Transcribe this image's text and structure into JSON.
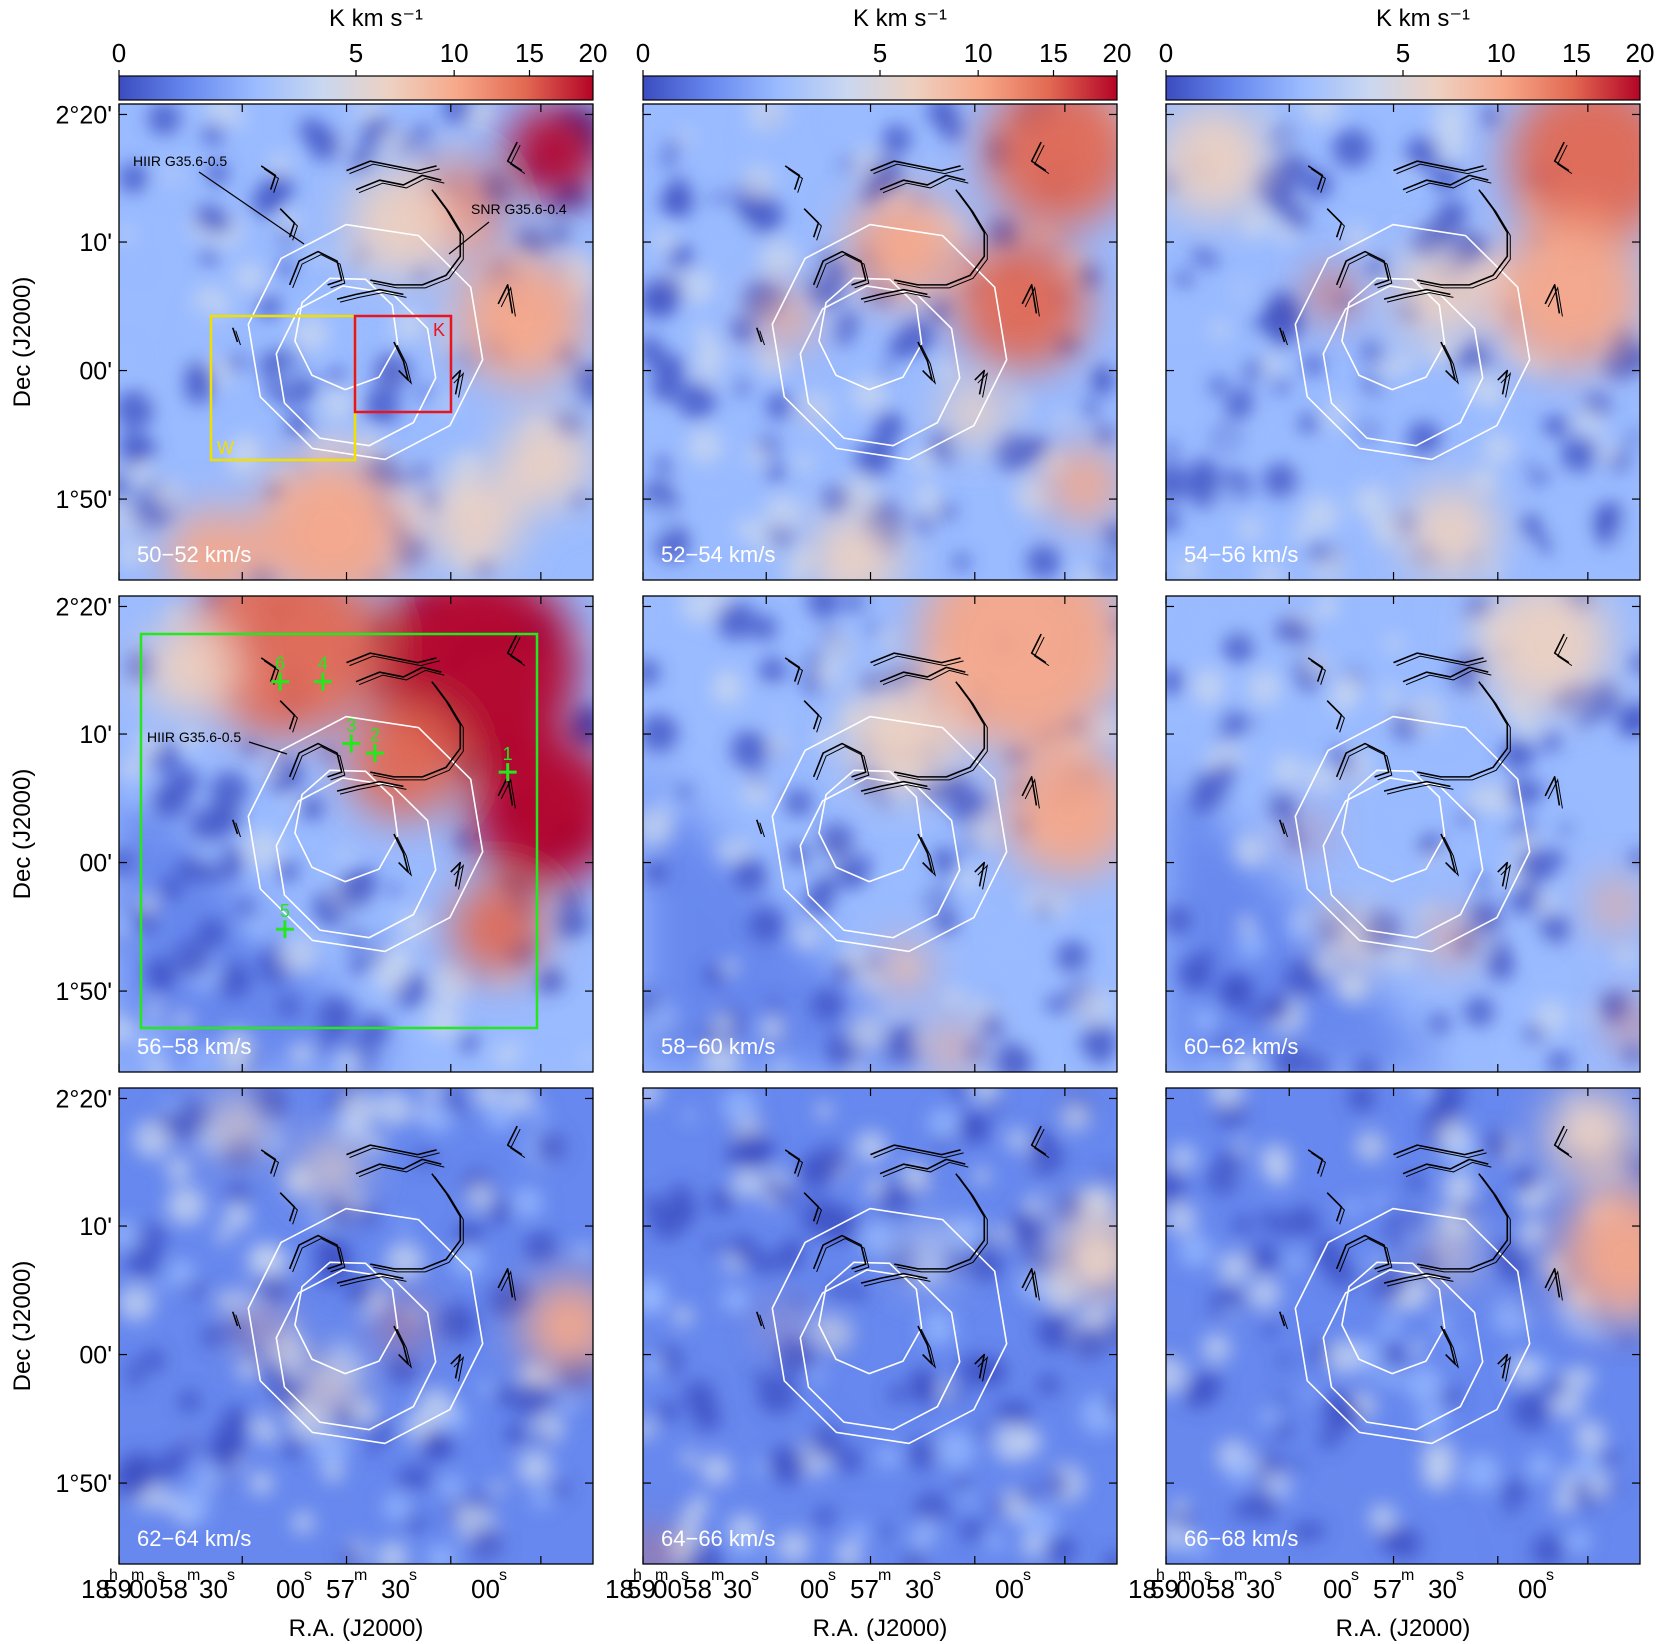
{
  "colorbar": {
    "unit_label": "K km s⁻¹",
    "ticks": [
      "0",
      "5",
      "10",
      "15",
      "20"
    ],
    "tick_values": [
      0,
      5,
      10,
      15,
      20
    ],
    "scale": "sqrt",
    "colormap": [
      "#3b4cc0",
      "#6788ee",
      "#9abbff",
      "#c9d7f0",
      "#edd1c2",
      "#f7a889",
      "#e26952",
      "#b40426"
    ]
  },
  "axes": {
    "ylabel": "Dec (J2000)",
    "xlabel": "R.A. (J2000)",
    "yticks": [
      "2°20'",
      "10'",
      "00'",
      "1°50'"
    ],
    "xticks": [
      {
        "main": "18",
        "sup": "h"
      },
      {
        "main": "59",
        "sup": "m"
      },
      {
        "main": "00",
        "sup": "s"
      },
      {
        "main": "58",
        "sup": "m"
      },
      {
        "main": "30",
        "sup": "s"
      },
      {
        "main": "00",
        "sup": "s"
      },
      {
        "main": "57",
        "sup": "m"
      },
      {
        "main": "30",
        "sup": "s"
      },
      {
        "main": "00",
        "sup": "s"
      }
    ]
  },
  "panels": [
    {
      "label": "50−52 km/s"
    },
    {
      "label": "52−54 km/s"
    },
    {
      "label": "54−56 km/s"
    },
    {
      "label": "56−58 km/s"
    },
    {
      "label": "58−60 km/s"
    },
    {
      "label": "60−62 km/s"
    },
    {
      "label": "62−64 km/s"
    },
    {
      "label": "64−66 km/s"
    },
    {
      "label": "66−68 km/s"
    }
  ],
  "annotations": {
    "hiir": "HIIR G35.6-0.5",
    "snr": "SNR G35.6-0.4",
    "box_w": "W",
    "box_k": "K",
    "box_colors": {
      "w": "#f0e000",
      "k": "#e8141e",
      "green": "#22e81c"
    },
    "crosses": [
      "1",
      "2",
      "3",
      "4",
      "5",
      "6"
    ]
  }
}
